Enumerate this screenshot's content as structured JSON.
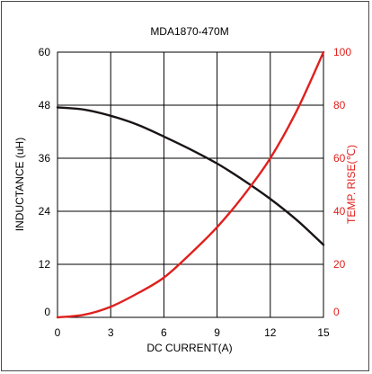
{
  "chart_data": {
    "type": "line",
    "title": "MDA1870-470M",
    "xlabel": "DC CURRENT(A)",
    "ylabel": "INDUCTANCE (uH)",
    "y2label": "TEMP. RISE(℃)",
    "xlim": [
      0,
      15
    ],
    "ylim": [
      0,
      60
    ],
    "y2lim": [
      0,
      100
    ],
    "x_ticks": [
      "0",
      "3",
      "6",
      "9",
      "12",
      "15"
    ],
    "y_ticks": [
      "0",
      "12",
      "24",
      "36",
      "48",
      "60"
    ],
    "y2_ticks": [
      "0",
      "20",
      "40",
      "60",
      "80",
      "100"
    ],
    "grid": true,
    "series": [
      {
        "axis": "left",
        "color": "#1a1416",
        "x": [
          0,
          1.5,
          3,
          4.5,
          6,
          7.5,
          9,
          10.5,
          12,
          13.5,
          15
        ],
        "y": [
          47.5,
          47.0,
          45.6,
          43.6,
          40.9,
          38.0,
          34.8,
          31.0,
          26.8,
          22.0,
          16.4
        ]
      },
      {
        "axis": "right",
        "color": "#e0201c",
        "x": [
          0,
          1.5,
          3,
          4.5,
          6,
          7.5,
          9,
          10.5,
          12,
          13.5,
          15
        ],
        "y": [
          0,
          1,
          4,
          9,
          15,
          24,
          34,
          46,
          60,
          78,
          100
        ]
      }
    ]
  }
}
